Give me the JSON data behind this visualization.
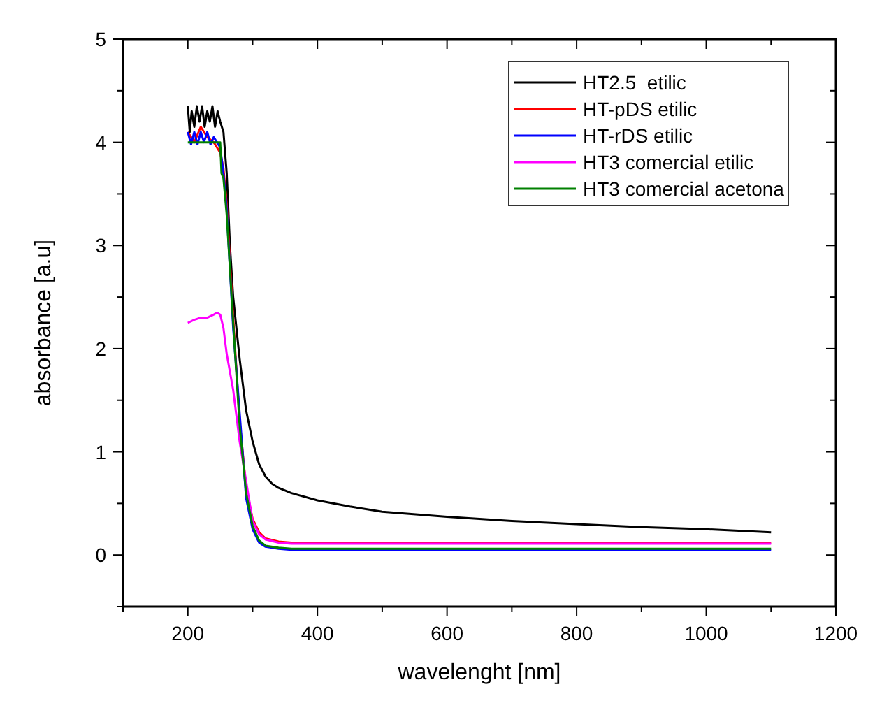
{
  "chart_data": {
    "type": "line",
    "xlabel": "wavelenght [nm]",
    "ylabel": "absorbance [a.u]",
    "xlim": [
      100,
      1200
    ],
    "ylim": [
      -0.5,
      5
    ],
    "xticks": [
      {
        "value": 100,
        "label": null
      },
      200,
      {
        "value": 300,
        "label": null
      },
      400,
      {
        "value": 500,
        "label": null
      },
      600,
      {
        "value": 700,
        "label": null
      },
      800,
      {
        "value": 900,
        "label": null
      },
      1000,
      {
        "value": 1100,
        "label": null
      },
      1200
    ],
    "yticks": [
      {
        "value": -0.5,
        "label": null
      },
      0,
      {
        "value": 0.5,
        "label": null
      },
      1,
      {
        "value": 1.5,
        "label": null
      },
      2,
      {
        "value": 2.5,
        "label": null
      },
      3,
      {
        "value": 3.5,
        "label": null
      },
      4,
      {
        "value": 4.5,
        "label": null
      },
      5
    ],
    "legend": "top right",
    "grid": false,
    "marker": "none",
    "line_style": "solid",
    "series": [
      {
        "name": "HT2.5  etilic",
        "color": "#000000",
        "x": [
          200,
          203,
          206,
          210,
          214,
          218,
          222,
          226,
          230,
          234,
          238,
          242,
          246,
          250,
          255,
          260,
          265,
          270,
          280,
          290,
          300,
          310,
          320,
          330,
          340,
          360,
          400,
          450,
          500,
          600,
          700,
          800,
          900,
          1000,
          1100
        ],
        "values": [
          4.35,
          4.1,
          4.3,
          4.15,
          4.35,
          4.2,
          4.35,
          4.15,
          4.3,
          4.2,
          4.35,
          4.15,
          4.3,
          4.2,
          4.1,
          3.7,
          3.0,
          2.5,
          1.9,
          1.4,
          1.1,
          0.88,
          0.76,
          0.69,
          0.65,
          0.6,
          0.53,
          0.47,
          0.42,
          0.37,
          0.33,
          0.3,
          0.27,
          0.25,
          0.22
        ]
      },
      {
        "name": "HT-pDS etilic",
        "color": "#ff0000",
        "x": [
          200,
          210,
          220,
          230,
          240,
          245,
          250,
          255,
          260,
          270,
          280,
          290,
          300,
          310,
          320,
          340,
          360,
          400,
          600,
          800,
          1000,
          1100
        ],
        "values": [
          4.1,
          4.0,
          4.15,
          4.05,
          4.0,
          3.95,
          3.9,
          3.75,
          3.4,
          2.3,
          1.3,
          0.65,
          0.35,
          0.22,
          0.16,
          0.13,
          0.12,
          0.12,
          0.12,
          0.12,
          0.12,
          0.12
        ]
      },
      {
        "name": "HT-rDS etilic",
        "color": "#0000ff",
        "x": [
          200,
          205,
          210,
          215,
          220,
          225,
          230,
          235,
          240,
          245,
          250,
          255,
          260,
          270,
          280,
          290,
          300,
          310,
          320,
          340,
          360,
          400,
          600,
          800,
          1000,
          1100
        ],
        "values": [
          4.1,
          3.98,
          4.1,
          3.98,
          4.1,
          4.0,
          4.1,
          3.98,
          4.05,
          4.0,
          3.95,
          3.7,
          3.35,
          2.2,
          null,
          0.55,
          0.25,
          0.12,
          0.08,
          0.06,
          0.05,
          0.05,
          0.05,
          0.05,
          0.05,
          0.05
        ]
      },
      {
        "name": "HT3 comercial etilic",
        "color": "#ff00ff",
        "x": [
          200,
          210,
          220,
          230,
          240,
          245,
          250,
          255,
          260,
          270,
          280,
          290,
          300,
          310,
          320,
          340,
          360,
          400,
          600,
          800,
          1000,
          1100
        ],
        "values": [
          2.25,
          2.28,
          2.3,
          2.3,
          2.33,
          2.35,
          2.33,
          2.2,
          1.95,
          1.6,
          1.1,
          null,
          0.33,
          0.2,
          0.15,
          0.12,
          0.11,
          0.11,
          0.11,
          0.11,
          0.11,
          0.11
        ]
      },
      {
        "name": "HT3 comercial acetona",
        "color": "#008000",
        "x": [
          200,
          210,
          220,
          230,
          240,
          245,
          250,
          252,
          255,
          260,
          270,
          280,
          290,
          300,
          310,
          320,
          340,
          360,
          400,
          600,
          800,
          1000,
          1100
        ],
        "values": [
          4.0,
          4.0,
          4.0,
          4.0,
          4.0,
          4.0,
          4.0,
          3.7,
          3.65,
          3.3,
          2.25,
          1.25,
          0.6,
          0.28,
          0.14,
          0.09,
          0.07,
          0.06,
          0.06,
          0.06,
          0.06,
          0.06,
          0.06
        ]
      }
    ]
  }
}
